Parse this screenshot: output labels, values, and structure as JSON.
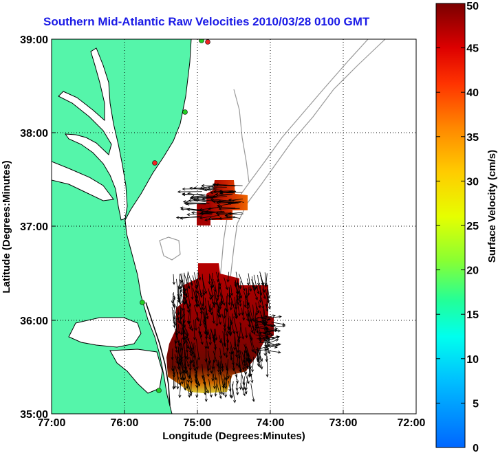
{
  "title": "Southern Mid-Atlantic Raw Velocities 2010/03/28 0100 GMT",
  "map": {
    "lon_range": [
      -77,
      -72
    ],
    "lat_range": [
      35,
      39
    ],
    "x_ticks": [
      "77:00",
      "76:00",
      "75:00",
      "74:00",
      "73:00",
      "72:00"
    ],
    "y_ticks": [
      "35:00",
      "36:00",
      "37:00",
      "38:00",
      "39:00"
    ],
    "xlabel": "Longitude (Degrees:Minutes)",
    "ylabel": "Latitude (Degrees:Minutes)",
    "grid": "dotted",
    "land_color": "#55f5aa",
    "coast_color": "#000000",
    "bathymetry_color": "#999999",
    "station_color": "#22cc22",
    "station_alert_color": "#ee2222",
    "vector_color": "#000000"
  },
  "colorbar": {
    "label": "Surface Velocity (cm/s)",
    "ticks": [
      "0",
      "5",
      "10",
      "15",
      "20",
      "25",
      "30",
      "35",
      "40",
      "45",
      "50"
    ],
    "range": [
      0,
      50
    ]
  }
}
